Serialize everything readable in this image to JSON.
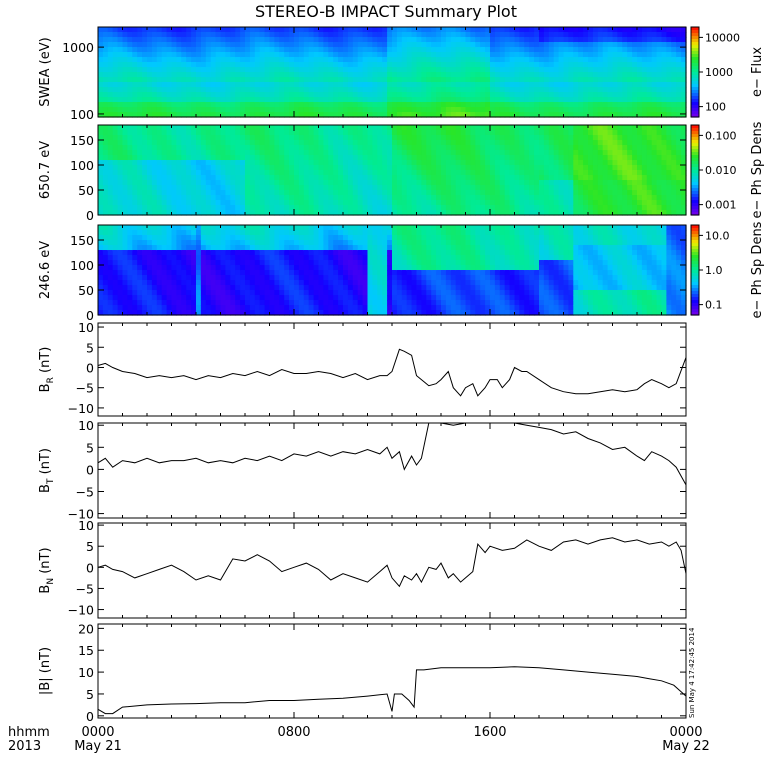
{
  "chart_data": {
    "type": "line",
    "title": "STEREO-B IMPACT Summary Plot",
    "time_axis": {
      "row1_label": "hhmm",
      "row2_label": "2013",
      "ticks": [
        {
          "t": 0,
          "top": "0000",
          "bottom": "May 21"
        },
        {
          "t": 8,
          "top": "0800",
          "bottom": ""
        },
        {
          "t": 16,
          "top": "1600",
          "bottom": ""
        },
        {
          "t": 24,
          "top": "0000",
          "bottom": "May 22"
        }
      ],
      "range_hours": [
        0,
        24
      ]
    },
    "stamp": "Sun May  4 17:42:45 2014",
    "panels": [
      {
        "id": "swea",
        "type": "heatmap",
        "ylabel": "SWEA (eV)",
        "yscale": "log",
        "ylim": [
          90,
          2000
        ],
        "yticks": [
          {
            "v": 1000,
            "label": "1000"
          },
          {
            "v": 100,
            "label": "100"
          }
        ],
        "colorbar": {
          "label": "e− Flux",
          "scale": "log",
          "ticks": [
            {
              "v": 10000,
              "label": "10000"
            },
            {
              "v": 1000,
              "label": "1000"
            },
            {
              "v": 100,
              "label": "100"
            }
          ]
        }
      },
      {
        "id": "pad650",
        "type": "heatmap",
        "ylabel": "650.7 eV",
        "yscale": "linear",
        "ylim": [
          0,
          180
        ],
        "yticks": [
          {
            "v": 150,
            "label": "150"
          },
          {
            "v": 100,
            "label": "100"
          },
          {
            "v": 50,
            "label": "50"
          },
          {
            "v": 0,
            "label": "0"
          }
        ],
        "colorbar": {
          "label": "e− Ph Sp Dens",
          "scale": "log",
          "ticks": [
            {
              "v": 0.1,
              "label": "0.100"
            },
            {
              "v": 0.01,
              "label": "0.010"
            },
            {
              "v": 0.001,
              "label": "0.001"
            }
          ]
        }
      },
      {
        "id": "pad246",
        "type": "heatmap",
        "ylabel": "246.6 eV",
        "yscale": "linear",
        "ylim": [
          0,
          180
        ],
        "yticks": [
          {
            "v": 150,
            "label": "150"
          },
          {
            "v": 100,
            "label": "100"
          },
          {
            "v": 50,
            "label": "50"
          },
          {
            "v": 0,
            "label": "0"
          }
        ],
        "colorbar": {
          "label": "e− Ph Sp Dens",
          "scale": "log",
          "ticks": [
            {
              "v": 10,
              "label": "10.0"
            },
            {
              "v": 1,
              "label": "1.0"
            },
            {
              "v": 0.1,
              "label": "0.1"
            }
          ]
        }
      },
      {
        "id": "br",
        "type": "line",
        "ylabel": "B",
        "ylabel_sub": "R",
        "ylabel_unit": " (nT)",
        "ylim": [
          -12,
          11
        ],
        "yticks": [
          {
            "v": 10,
            "label": "10"
          },
          {
            "v": 5,
            "label": "5"
          },
          {
            "v": 0,
            "label": "0"
          },
          {
            "v": -5,
            "label": "−5"
          },
          {
            "v": -10,
            "label": "−10"
          }
        ],
        "series": [
          {
            "x": [
              0,
              0.3,
              0.6,
              1,
              1.5,
              2,
              2.5,
              3,
              3.5,
              4,
              4.5,
              5,
              5.5,
              6,
              6.5,
              7,
              7.5,
              8,
              8.5,
              9,
              9.5,
              10,
              10.5,
              11,
              11.5,
              11.8,
              12,
              12.3,
              12.5,
              12.8,
              13,
              13.2,
              13.5,
              13.8,
              14,
              14.3,
              14.5,
              14.8,
              15,
              15.3,
              15.5,
              15.8,
              16,
              16.3,
              16.5,
              16.8,
              17,
              17.3,
              17.5,
              18,
              18.5,
              19,
              19.5,
              20,
              20.5,
              21,
              21.5,
              22,
              22.3,
              22.6,
              23,
              23.3,
              23.6,
              24
            ],
            "y": [
              0.5,
              1,
              0,
              -1,
              -1.5,
              -2.5,
              -2,
              -2.5,
              -2,
              -3,
              -2,
              -2.5,
              -1.5,
              -2,
              -1,
              -2,
              -0.5,
              -1.5,
              -1.5,
              -1,
              -1.5,
              -2.5,
              -1.5,
              -3,
              -2,
              -2,
              -1,
              4.5,
              4,
              3,
              -2,
              -3,
              -4.5,
              -4,
              -3,
              -1,
              -5,
              -7,
              -5,
              -4,
              -7,
              -5,
              -3,
              -3,
              -5,
              -3,
              0,
              -1,
              -1,
              -3,
              -5,
              -6,
              -6.5,
              -6.5,
              -6,
              -5.5,
              -6,
              -5.5,
              -4,
              -3,
              -4,
              -5,
              -4,
              2.5
            ]
          }
        ]
      },
      {
        "id": "bt",
        "type": "line",
        "ylabel": "B",
        "ylabel_sub": "T",
        "ylabel_unit": " (nT)",
        "ylim": [
          -11,
          10.5
        ],
        "yticks": [
          {
            "v": 10,
            "label": "10"
          },
          {
            "v": 5,
            "label": "5"
          },
          {
            "v": 0,
            "label": "0"
          },
          {
            "v": -5,
            "label": "−5"
          },
          {
            "v": -10,
            "label": "−10"
          }
        ],
        "series": [
          {
            "x": [
              0,
              0.3,
              0.6,
              1,
              1.5,
              2,
              2.5,
              3,
              3.5,
              4,
              4.5,
              5,
              5.5,
              6,
              6.5,
              7,
              7.5,
              8,
              8.5,
              9,
              9.5,
              10,
              10.5,
              11,
              11.5,
              11.8,
              12,
              12.3,
              12.5,
              12.8,
              13,
              13.2,
              13.5,
              14,
              14.5,
              15,
              15.5,
              16,
              16.5,
              17,
              17.5,
              18,
              18.5,
              19,
              19.5,
              20,
              20.5,
              21,
              21.5,
              22,
              22.3,
              22.6,
              23,
              23.3,
              23.6,
              24
            ],
            "y": [
              1.5,
              2.5,
              0.5,
              2,
              1.5,
              2.5,
              1.5,
              2,
              2,
              2.5,
              1.5,
              2,
              1.5,
              2.5,
              2,
              3,
              2,
              3.5,
              3,
              4,
              3,
              4,
              3.5,
              4.5,
              3.5,
              5,
              2.5,
              4,
              0,
              3,
              1,
              2.5,
              10.5,
              10.5,
              10,
              10.5,
              10.5,
              10.5,
              10.5,
              10.5,
              10,
              9.5,
              9,
              8,
              8.5,
              7,
              6,
              4.5,
              5,
              3,
              2,
              4,
              3,
              2,
              0.5,
              -3.5
            ]
          }
        ]
      },
      {
        "id": "bn",
        "type": "line",
        "ylabel": "B",
        "ylabel_sub": "N",
        "ylabel_unit": " (nT)",
        "ylim": [
          -12,
          10.5
        ],
        "yticks": [
          {
            "v": 10,
            "label": "10"
          },
          {
            "v": 5,
            "label": "5"
          },
          {
            "v": 0,
            "label": "0"
          },
          {
            "v": -5,
            "label": "−5"
          },
          {
            "v": -10,
            "label": "−10"
          }
        ],
        "series": [
          {
            "x": [
              0,
              0.3,
              0.6,
              1,
              1.5,
              2,
              2.5,
              3,
              3.5,
              4,
              4.5,
              5,
              5.5,
              6,
              6.5,
              7,
              7.5,
              8,
              8.5,
              9,
              9.5,
              10,
              10.5,
              11,
              11.5,
              11.8,
              12,
              12.3,
              12.5,
              12.8,
              13,
              13.2,
              13.5,
              13.8,
              14,
              14.3,
              14.5,
              14.8,
              15,
              15.3,
              15.5,
              15.8,
              16,
              16.5,
              17,
              17.5,
              18,
              18.5,
              19,
              19.5,
              20,
              20.5,
              21,
              21.5,
              22,
              22.5,
              23,
              23.3,
              23.6,
              23.8,
              24
            ],
            "y": [
              0,
              0.5,
              -0.5,
              -1,
              -2.5,
              -1.5,
              -0.5,
              0.5,
              -1,
              -3,
              -2,
              -3,
              2,
              1.5,
              3,
              1.5,
              -1,
              0,
              1,
              -0.5,
              -3,
              -1.5,
              -2.5,
              -3.5,
              -1,
              0.5,
              -2.5,
              -4.5,
              -2,
              -3,
              -1.5,
              -3.5,
              0,
              -0.5,
              1,
              -2.5,
              -1.5,
              -3.5,
              -2.5,
              -1,
              5.5,
              3.5,
              5,
              4,
              4.5,
              6.5,
              5,
              4,
              6,
              6.5,
              5.5,
              6.5,
              7,
              6,
              6.5,
              5.5,
              6,
              5,
              6,
              4,
              -1.5
            ]
          }
        ]
      },
      {
        "id": "bmag",
        "type": "line",
        "ylabel": "|B| (nT)",
        "ylim": [
          -0.5,
          21
        ],
        "yticks": [
          {
            "v": 20,
            "label": "20"
          },
          {
            "v": 15,
            "label": "15"
          },
          {
            "v": 10,
            "label": "10"
          },
          {
            "v": 5,
            "label": "5"
          },
          {
            "v": 0,
            "label": "0"
          }
        ],
        "series": [
          {
            "x": [
              0,
              0.3,
              0.6,
              1,
              2,
              3,
              4,
              5,
              6,
              7,
              8,
              9,
              10,
              11,
              11.8,
              12,
              12.1,
              12.4,
              12.7,
              12.9,
              13,
              13.3,
              14,
              15,
              16,
              17,
              18,
              19,
              20,
              21,
              22,
              22.5,
              23,
              23.5,
              23.8,
              24
            ],
            "y": [
              1.5,
              0.5,
              0.5,
              2,
              2.5,
              2.7,
              2.8,
              3,
              3,
              3.5,
              3.5,
              3.8,
              4,
              4.5,
              5,
              1,
              5,
              5,
              3.5,
              2,
              10.5,
              10.5,
              11,
              11,
              11,
              11.2,
              11,
              10.5,
              10,
              9.5,
              9,
              8.5,
              8,
              7,
              5.5,
              4.5
            ]
          }
        ]
      }
    ]
  }
}
